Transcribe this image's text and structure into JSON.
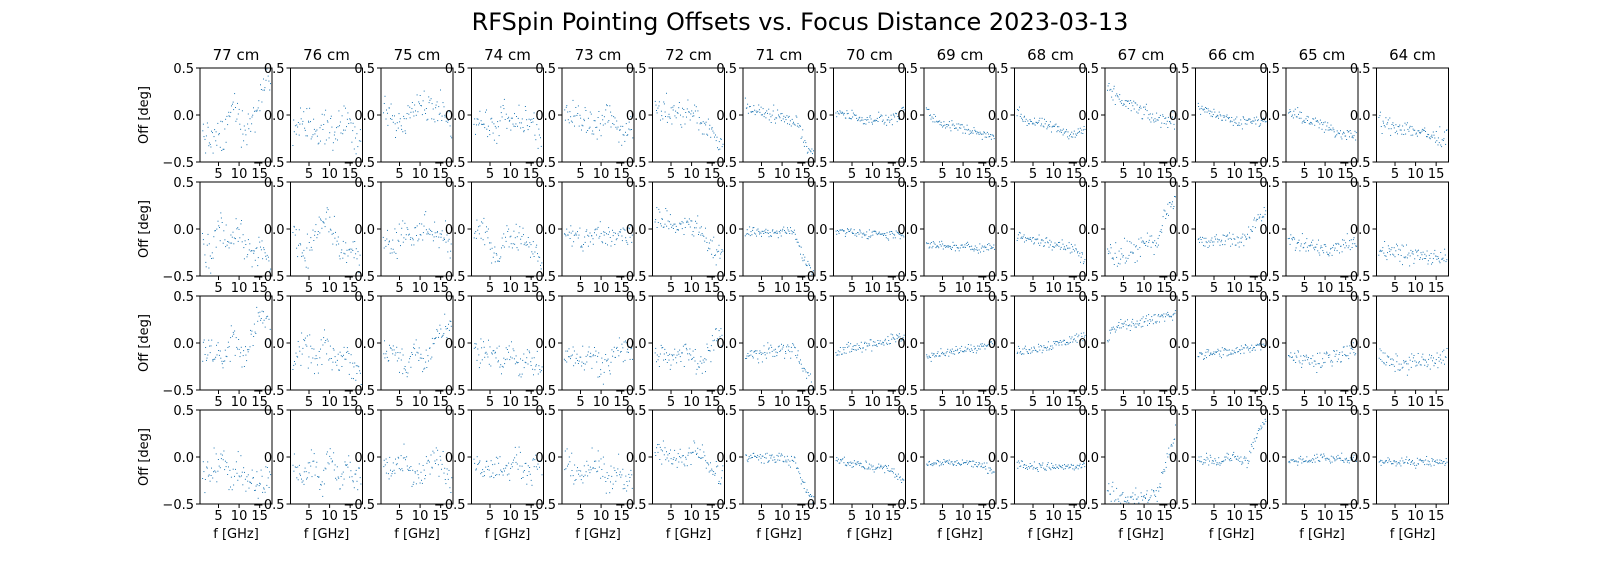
{
  "chart_data": {
    "type": "scatter",
    "title": "RFSpin Pointing Offsets vs. Focus Distance 2023-03-13",
    "columns": [
      "77 cm",
      "76 cm",
      "75 cm",
      "74 cm",
      "73 cm",
      "72 cm",
      "71 cm",
      "70 cm",
      "69 cm",
      "68 cm",
      "67 cm",
      "66 cm",
      "65 cm",
      "64 cm"
    ],
    "rows": 4,
    "xlabel": "f [GHz]",
    "ylabel": "Off [deg]",
    "xlim": [
      0.5,
      18
    ],
    "ylim": [
      -0.5,
      0.5
    ],
    "xticks": [
      5,
      10,
      15
    ],
    "yticks": [
      -0.5,
      0.0,
      0.5
    ],
    "ytick_labels": [
      "−0.5",
      "0.0",
      "0.5"
    ],
    "marker_color": "#1f77b4",
    "x_sampling": {
      "start": 1,
      "stop": 17.5,
      "points": 90
    },
    "trends": [
      [
        [
          0.2,
          -0.1,
          3.5,
          -0.3,
          6.5,
          -0.2,
          8.5,
          0.1,
          11,
          -0.15,
          14,
          0.0,
          16,
          0.35,
          17.5,
          0.5
        ],
        [
          0.1,
          -0.05,
          3,
          -0.25,
          5.5,
          0.1,
          7,
          -0.2,
          9.5,
          0.0,
          13,
          -0.35,
          15,
          -0.2,
          17.5,
          -0.4
        ],
        [
          0.1,
          -0.1,
          3,
          -0.05,
          6,
          -0.2,
          8.5,
          0.1,
          11,
          -0.2,
          13,
          0.1,
          15.5,
          0.3,
          17.5,
          0.15
        ],
        [
          0.1,
          -0.1,
          3,
          -0.2,
          5.5,
          0.0,
          8,
          -0.3,
          10,
          -0.05,
          12.5,
          -0.3,
          15,
          -0.35,
          17.5,
          -0.15
        ]
      ],
      [
        [
          0.15,
          -0.2,
          3.5,
          -0.05,
          6.5,
          -0.2,
          8.5,
          -0.1,
          11,
          -0.2,
          14,
          0.0,
          16,
          -0.3,
          17.5,
          -0.2
        ],
        [
          0.1,
          0.1,
          4,
          -0.3,
          6.5,
          0.0,
          9.5,
          0.15,
          12,
          -0.15,
          14,
          -0.3,
          16,
          -0.2,
          17.5,
          -0.4
        ],
        [
          0.0,
          -0.2,
          4,
          -0.05,
          7,
          -0.2,
          9,
          0.0,
          11,
          -0.2,
          14,
          -0.1,
          16,
          -0.25,
          17.5,
          -0.35
        ],
        [
          0.0,
          0.05,
          3,
          -0.2,
          6,
          -0.1,
          8,
          -0.3,
          10,
          0.05,
          12,
          -0.2,
          14,
          -0.1,
          17.5,
          -0.3
        ]
      ],
      [
        [
          0.1,
          0.15,
          3.5,
          -0.1,
          6,
          -0.05,
          9,
          0.2,
          11,
          0.1,
          13,
          0.1,
          15,
          0.05,
          17.5,
          -0.1
        ],
        [
          0.1,
          0.0,
          3.5,
          -0.15,
          6,
          0.0,
          9,
          -0.1,
          11,
          0.05,
          14,
          -0.05,
          17.5,
          -0.15
        ],
        [
          0.0,
          -0.1,
          4,
          -0.05,
          6.5,
          -0.3,
          9,
          -0.05,
          11,
          -0.25,
          14,
          0.1,
          17.5,
          0.15
        ],
        [
          0.0,
          0.0,
          3,
          -0.15,
          6,
          -0.05,
          9,
          -0.25,
          11,
          -0.15,
          14,
          0.0,
          17.5,
          -0.25
        ]
      ],
      [
        [
          0.0,
          0.0,
          3,
          -0.05,
          6,
          -0.2,
          8,
          0.0,
          11,
          -0.1,
          13,
          -0.05,
          15.5,
          -0.1,
          17.5,
          -0.3
        ],
        [
          0.0,
          -0.05,
          4,
          -0.05,
          7,
          -0.3,
          9,
          -0.05,
          11,
          -0.05,
          13,
          -0.1,
          15,
          -0.2,
          17.5,
          -0.3
        ],
        [
          0.0,
          -0.1,
          3,
          -0.1,
          6,
          -0.1,
          8,
          -0.2,
          10,
          -0.05,
          12,
          -0.3,
          14,
          -0.15,
          17.5,
          -0.3
        ],
        [
          0.0,
          -0.05,
          3,
          -0.15,
          6,
          -0.1,
          9,
          -0.15,
          11,
          0.0,
          13,
          -0.1,
          15,
          -0.15,
          17.5,
          -0.1
        ]
      ],
      [
        [
          0.0,
          0.05,
          3,
          0.0,
          6,
          -0.05,
          9,
          -0.1,
          11,
          0.0,
          13,
          -0.05,
          15,
          -0.2,
          17.5,
          -0.1
        ],
        [
          0.0,
          -0.05,
          3,
          -0.1,
          6,
          -0.1,
          9,
          -0.05,
          11,
          -0.1,
          14,
          -0.05,
          17.5,
          -0.05
        ],
        [
          0.0,
          -0.15,
          3,
          -0.1,
          6,
          -0.15,
          8,
          -0.1,
          10,
          -0.25,
          12,
          -0.2,
          14,
          -0.05,
          17.5,
          -0.1
        ],
        [
          0.0,
          -0.05,
          3,
          -0.1,
          6,
          -0.2,
          8,
          -0.05,
          10,
          -0.15,
          12,
          -0.25,
          14,
          -0.1,
          17.5,
          -0.3
        ]
      ],
      [
        [
          0.0,
          0.1,
          4,
          0.05,
          7,
          0.0,
          9,
          0.05,
          11,
          0.0,
          13,
          -0.1,
          15,
          -0.2,
          17.5,
          -0.3
        ],
        [
          0.0,
          0.15,
          3,
          0.1,
          6,
          0.05,
          9,
          0.05,
          11,
          0.0,
          13,
          -0.05,
          15,
          -0.2,
          17.5,
          -0.3
        ],
        [
          0.0,
          -0.15,
          3,
          -0.1,
          6,
          -0.15,
          9,
          -0.1,
          11,
          -0.2,
          13,
          -0.15,
          15,
          0.0,
          17.5,
          0.1
        ],
        [
          0.0,
          0.05,
          3,
          0.05,
          6,
          0.0,
          9,
          0.0,
          11,
          0.05,
          13,
          0.0,
          15,
          -0.1,
          17.5,
          -0.2
        ]
      ],
      [
        [
          0.0,
          0.2,
          2,
          0.05,
          5,
          0.03,
          8,
          0.0,
          11,
          -0.03,
          14,
          -0.1,
          16,
          -0.35,
          17.5,
          -0.45
        ],
        [
          0.0,
          -0.02,
          3,
          -0.03,
          6,
          -0.03,
          9,
          -0.04,
          11,
          -0.02,
          13,
          -0.05,
          15,
          -0.3,
          17.5,
          -0.45
        ],
        [
          0.0,
          -0.15,
          3,
          -0.12,
          6,
          -0.1,
          9,
          -0.05,
          11,
          -0.08,
          13,
          -0.05,
          15,
          -0.25,
          17.5,
          -0.45
        ],
        [
          0.0,
          0.05,
          3,
          0.0,
          6,
          -0.01,
          9,
          0.0,
          11,
          -0.02,
          13,
          -0.05,
          15,
          -0.3,
          17.5,
          -0.45
        ]
      ],
      [
        [
          0.0,
          0.05,
          3,
          0.02,
          6,
          -0.02,
          9,
          -0.05,
          11,
          -0.02,
          13,
          -0.05,
          15,
          -0.03,
          17.5,
          0.05
        ],
        [
          0.0,
          -0.02,
          3,
          -0.03,
          6,
          -0.04,
          9,
          -0.05,
          11,
          -0.03,
          13,
          -0.06,
          15,
          -0.05,
          17.5,
          -0.05
        ],
        [
          0.0,
          -0.1,
          3,
          -0.07,
          6,
          -0.05,
          9,
          -0.02,
          11,
          0.0,
          13,
          0.03,
          15,
          0.05,
          17.5,
          0.1
        ],
        [
          0.0,
          0.0,
          3,
          -0.05,
          6,
          -0.08,
          9,
          -0.1,
          11,
          -0.1,
          13,
          -0.12,
          15,
          -0.15,
          17.5,
          -0.25
        ]
      ],
      [
        [
          0.0,
          0.1,
          3,
          -0.05,
          6,
          -0.1,
          9,
          -0.13,
          11,
          -0.15,
          13,
          -0.18,
          15,
          -0.2,
          17.5,
          -0.2
        ],
        [
          0.0,
          -0.15,
          3,
          -0.17,
          6,
          -0.18,
          9,
          -0.19,
          11,
          -0.18,
          13,
          -0.2,
          15,
          -0.19,
          17.5,
          -0.18
        ],
        [
          0.0,
          -0.15,
          3,
          -0.12,
          6,
          -0.1,
          9,
          -0.08,
          11,
          -0.05,
          13,
          -0.05,
          15,
          -0.02,
          17.5,
          0.02
        ],
        [
          0.0,
          -0.05,
          3,
          -0.07,
          6,
          -0.05,
          9,
          -0.06,
          11,
          -0.05,
          13,
          -0.08,
          15,
          -0.1,
          17.5,
          -0.15
        ]
      ],
      [
        [
          0.0,
          0.1,
          3,
          -0.05,
          6,
          -0.08,
          9,
          -0.12,
          11,
          -0.15,
          13,
          -0.18,
          15,
          -0.2,
          17.5,
          -0.15
        ],
        [
          0.0,
          -0.05,
          3,
          -0.1,
          6,
          -0.12,
          9,
          -0.14,
          11,
          -0.15,
          13,
          -0.18,
          15,
          -0.2,
          17.5,
          -0.35
        ],
        [
          0.0,
          -0.1,
          3,
          -0.07,
          6,
          -0.05,
          9,
          -0.02,
          11,
          0.0,
          13,
          0.02,
          15,
          0.05,
          17.5,
          0.08
        ],
        [
          0.0,
          -0.05,
          3,
          -0.08,
          6,
          -0.1,
          9,
          -0.1,
          11,
          -0.1,
          13,
          -0.1,
          15,
          -0.1,
          17.5,
          -0.1
        ]
      ],
      [
        [
          0.0,
          0.3,
          3,
          0.2,
          6,
          0.12,
          9,
          0.05,
          11,
          0.0,
          13,
          -0.05,
          15,
          -0.05,
          17.5,
          -0.05
        ],
        [
          0.0,
          -0.1,
          3,
          -0.3,
          6,
          -0.25,
          9,
          -0.2,
          11,
          -0.15,
          13,
          -0.2,
          15,
          0.2,
          17.5,
          0.3
        ],
        [
          0.0,
          -0.1,
          2,
          0.15,
          5,
          0.2,
          9,
          0.22,
          11,
          0.25,
          13,
          0.27,
          15,
          0.3,
          17.5,
          0.3
        ],
        [
          0.0,
          -0.2,
          3,
          -0.45,
          6,
          -0.45,
          9,
          -0.42,
          11,
          -0.45,
          13,
          -0.4,
          15,
          -0.1,
          17.5,
          0.3
        ]
      ],
      [
        [
          0.0,
          0.1,
          3,
          0.05,
          6,
          0.0,
          9,
          -0.05,
          11,
          -0.08,
          13,
          -0.05,
          15,
          -0.05,
          17.5,
          -0.05
        ],
        [
          0.0,
          -0.1,
          3,
          -0.15,
          6,
          -0.12,
          9,
          -0.1,
          11,
          -0.12,
          13,
          -0.1,
          15,
          0.1,
          17.5,
          0.2
        ],
        [
          0.0,
          -0.1,
          3,
          -0.12,
          6,
          -0.1,
          9,
          -0.1,
          11,
          -0.08,
          13,
          -0.05,
          15,
          -0.03,
          17.5,
          0.0
        ],
        [
          0.0,
          -0.05,
          3,
          0.0,
          6,
          -0.05,
          9,
          0.0,
          11,
          0.0,
          13,
          -0.05,
          15,
          0.2,
          17.5,
          0.4
        ]
      ],
      [
        [
          0.0,
          0.05,
          3,
          0.0,
          6,
          -0.05,
          9,
          -0.1,
          11,
          -0.15,
          13,
          -0.2,
          15,
          -0.18,
          17.5,
          -0.2
        ],
        [
          0.0,
          -0.1,
          3,
          -0.15,
          6,
          -0.18,
          9,
          -0.2,
          11,
          -0.25,
          13,
          -0.2,
          15,
          -0.15,
          17.5,
          -0.15
        ],
        [
          0.0,
          -0.1,
          3,
          -0.15,
          6,
          -0.17,
          9,
          -0.2,
          11,
          -0.15,
          13,
          -0.1,
          15,
          -0.1,
          17.5,
          -0.05
        ],
        [
          0.0,
          -0.05,
          3,
          -0.03,
          6,
          -0.03,
          9,
          0.0,
          11,
          -0.02,
          13,
          0.0,
          15,
          -0.03,
          17.5,
          -0.03
        ]
      ],
      [
        [
          0.0,
          -0.05,
          3,
          -0.1,
          6,
          -0.12,
          9,
          -0.15,
          11,
          -0.18,
          13,
          -0.2,
          15,
          -0.25,
          17.5,
          -0.22
        ],
        [
          0.0,
          -0.2,
          3,
          -0.22,
          6,
          -0.25,
          9,
          -0.28,
          11,
          -0.28,
          13,
          -0.3,
          15,
          -0.3,
          17.5,
          -0.28
        ],
        [
          0.0,
          -0.1,
          3,
          -0.2,
          6,
          -0.22,
          9,
          -0.2,
          11,
          -0.18,
          13,
          -0.2,
          15,
          -0.18,
          17.5,
          -0.1
        ],
        [
          0.0,
          -0.05,
          3,
          -0.05,
          6,
          -0.05,
          9,
          -0.05,
          11,
          -0.05,
          13,
          -0.05,
          15,
          -0.05,
          17.5,
          -0.05
        ]
      ]
    ],
    "noise": [
      [
        0.16,
        0.16,
        0.13,
        0.16
      ],
      [
        0.16,
        0.15,
        0.14,
        0.14
      ],
      [
        0.14,
        0.15,
        0.12,
        0.13
      ],
      [
        0.14,
        0.13,
        0.12,
        0.12
      ],
      [
        0.13,
        0.13,
        0.12,
        0.13
      ],
      [
        0.12,
        0.12,
        0.12,
        0.11
      ],
      [
        0.07,
        0.05,
        0.07,
        0.05
      ],
      [
        0.05,
        0.04,
        0.06,
        0.04
      ],
      [
        0.05,
        0.04,
        0.04,
        0.04
      ],
      [
        0.05,
        0.05,
        0.05,
        0.04
      ],
      [
        0.07,
        0.12,
        0.05,
        0.1
      ],
      [
        0.05,
        0.07,
        0.05,
        0.05
      ],
      [
        0.06,
        0.08,
        0.08,
        0.04
      ],
      [
        0.08,
        0.08,
        0.08,
        0.04
      ]
    ]
  }
}
